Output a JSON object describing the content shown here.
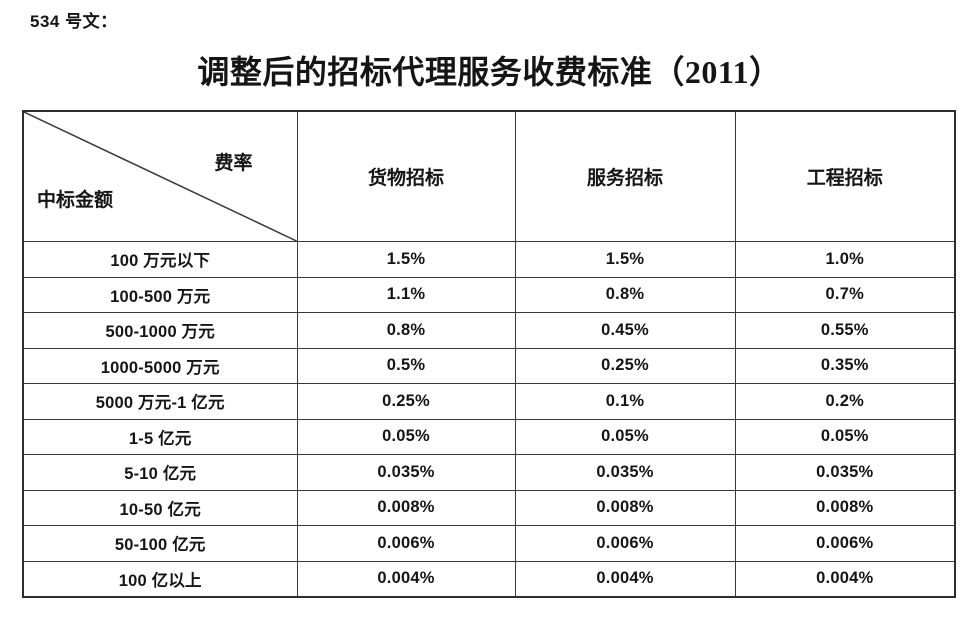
{
  "page": {
    "doc_label": "534 号文：",
    "title": "调整后的招标代理服务收费标准（2011）"
  },
  "table": {
    "corner": {
      "top_right": "费率",
      "bottom_left": "中标金额"
    },
    "columns": [
      "货物招标",
      "服务招标",
      "工程招标"
    ],
    "rows": [
      {
        "label": "100 万元以下",
        "values": [
          "1.5%",
          "1.5%",
          "1.0%"
        ]
      },
      {
        "label": "100-500 万元",
        "values": [
          "1.1%",
          "0.8%",
          "0.7%"
        ]
      },
      {
        "label": "500-1000 万元",
        "values": [
          "0.8%",
          "0.45%",
          "0.55%"
        ]
      },
      {
        "label": "1000-5000 万元",
        "values": [
          "0.5%",
          "0.25%",
          "0.35%"
        ]
      },
      {
        "label": "5000 万元-1 亿元",
        "values": [
          "0.25%",
          "0.1%",
          "0.2%"
        ]
      },
      {
        "label": "1-5 亿元",
        "values": [
          "0.05%",
          "0.05%",
          "0.05%"
        ]
      },
      {
        "label": "5-10 亿元",
        "values": [
          "0.035%",
          "0.035%",
          "0.035%"
        ]
      },
      {
        "label": "10-50 亿元",
        "values": [
          "0.008%",
          "0.008%",
          "0.008%"
        ]
      },
      {
        "label": "50-100 亿元",
        "values": [
          "0.006%",
          "0.006%",
          "0.006%"
        ]
      },
      {
        "label": "100 亿以上",
        "values": [
          "0.004%",
          "0.004%",
          "0.004%"
        ]
      }
    ],
    "colors": {
      "border": "#3a3a3a",
      "text": "#151515",
      "background": "#ffffff"
    }
  }
}
